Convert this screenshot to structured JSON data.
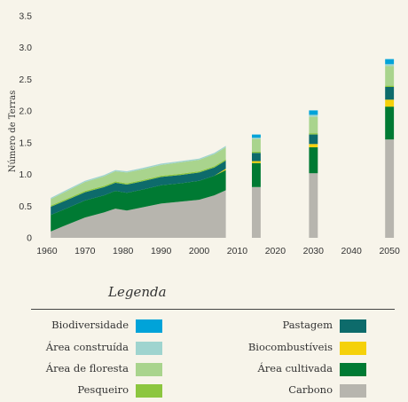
{
  "chart_data": {
    "type": "area",
    "ylabel": "Número de Terras",
    "xlabel": "",
    "ylim": [
      0,
      3.5
    ],
    "xlim": [
      1957,
      2053
    ],
    "yticks": [
      "0",
      "0.5",
      "1.0",
      "1.5",
      "2.0",
      "2.5",
      "3.0",
      "3.5"
    ],
    "ytick_values": [
      0,
      0.5,
      1.0,
      1.5,
      2.0,
      2.5,
      3.0,
      3.5
    ],
    "xticks": [
      "1960",
      "1970",
      "1980",
      "1990",
      "2000",
      "2010",
      "2020",
      "2030",
      "2040",
      "2050"
    ],
    "xtick_values": [
      1960,
      1970,
      1980,
      1990,
      2000,
      2010,
      2020,
      2030,
      2040,
      2050
    ],
    "x": [
      1961,
      1965,
      1970,
      1975,
      1978,
      1981,
      1985,
      1990,
      1995,
      2000,
      2004,
      2007
    ],
    "series": [
      {
        "name": "Carbono",
        "color": "#b7b5ae",
        "values": [
          0.1,
          0.2,
          0.32,
          0.4,
          0.46,
          0.43,
          0.48,
          0.54,
          0.57,
          0.6,
          0.67,
          0.75
        ]
      },
      {
        "name": "Área cultivada",
        "color": "#007a33",
        "values": [
          0.26,
          0.26,
          0.27,
          0.27,
          0.28,
          0.28,
          0.28,
          0.29,
          0.29,
          0.3,
          0.31,
          0.32
        ]
      },
      {
        "name": "Biocombustíveis",
        "color": "#f5d10a",
        "values": [
          0,
          0,
          0,
          0,
          0,
          0,
          0,
          0,
          0,
          0,
          0,
          0.02
        ]
      },
      {
        "name": "Pastagem",
        "color": "#0d6b6b",
        "values": [
          0.13,
          0.13,
          0.13,
          0.13,
          0.13,
          0.13,
          0.13,
          0.13,
          0.13,
          0.13,
          0.13,
          0.13
        ]
      },
      {
        "name": "Pesqueiro",
        "color": "#8cc63f",
        "values": [
          0.02,
          0.02,
          0.02,
          0.02,
          0.02,
          0.02,
          0.02,
          0.02,
          0.02,
          0.02,
          0.02,
          0.02
        ]
      },
      {
        "name": "Área de floresta",
        "color": "#a9d48d",
        "values": [
          0.1,
          0.12,
          0.14,
          0.15,
          0.16,
          0.17,
          0.17,
          0.17,
          0.18,
          0.18,
          0.19,
          0.19
        ]
      },
      {
        "name": "Área construída",
        "color": "#9fd4cf",
        "values": [
          0.02,
          0.02,
          0.02,
          0.02,
          0.02,
          0.02,
          0.02,
          0.02,
          0.02,
          0.02,
          0.02,
          0.02
        ]
      },
      {
        "name": "Biodiversidade",
        "color": "#00a3d9",
        "values": [
          0,
          0,
          0,
          0,
          0,
          0,
          0,
          0,
          0,
          0,
          0,
          0
        ]
      }
    ],
    "projections": [
      {
        "x": 2015,
        "values": {
          "Carbono": 0.8,
          "Área cultivada": 0.38,
          "Biocombustíveis": 0.03,
          "Pastagem": 0.13,
          "Pesqueiro": 0.02,
          "Área de floresta": 0.2,
          "Área construída": 0.02,
          "Biodiversidade": 0.05
        }
      },
      {
        "x": 2030,
        "values": {
          "Carbono": 1.02,
          "Área cultivada": 0.41,
          "Biocombustíveis": 0.05,
          "Pastagem": 0.15,
          "Pesqueiro": 0.02,
          "Área de floresta": 0.26,
          "Área construída": 0.03,
          "Biodiversidade": 0.07
        }
      },
      {
        "x": 2050,
        "values": {
          "Carbono": 1.55,
          "Área cultivada": 0.52,
          "Biocombustíveis": 0.11,
          "Pastagem": 0.2,
          "Pesqueiro": 0.02,
          "Área de floresta": 0.31,
          "Área construída": 0.03,
          "Biodiversidade": 0.08
        }
      }
    ],
    "bar_width_years": 2.3,
    "legend_placement": "bottom",
    "grid": false
  },
  "legend": {
    "title": "Legenda",
    "left_items": [
      {
        "label": "Biodiversidade",
        "color": "#00a3d9"
      },
      {
        "label": "Área construída",
        "color": "#9fd4cf"
      },
      {
        "label": "Área de floresta",
        "color": "#a9d48d"
      },
      {
        "label": "Pesqueiro",
        "color": "#8cc63f"
      }
    ],
    "right_items": [
      {
        "label": "Pastagem",
        "color": "#0d6b6b"
      },
      {
        "label": "Biocombustíveis",
        "color": "#f5d10a"
      },
      {
        "label": "Área cultivada",
        "color": "#007a33"
      },
      {
        "label": "Carbono",
        "color": "#b7b5ae"
      }
    ]
  }
}
